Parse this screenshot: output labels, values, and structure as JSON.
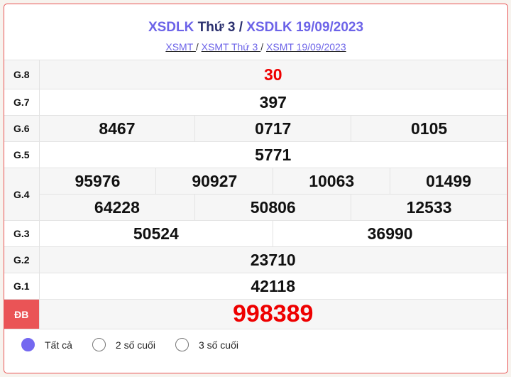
{
  "header": {
    "title_prefix": "XSDLK",
    "title_day": "Thứ 3",
    "title_sep": " / ",
    "title_date": "XSDLK 19/09/2023",
    "breadcrumbs": [
      "XSMT ",
      "XSMT Thứ 3 ",
      "XSMT 19/09/2023"
    ]
  },
  "prizes": {
    "g8": {
      "label": "G.8",
      "values": [
        "30"
      ]
    },
    "g7": {
      "label": "G.7",
      "values": [
        "397"
      ]
    },
    "g6": {
      "label": "G.6",
      "values": [
        "8467",
        "0717",
        "0105"
      ]
    },
    "g5": {
      "label": "G.5",
      "values": [
        "5771"
      ]
    },
    "g4": {
      "label": "G.4",
      "values": [
        "95976",
        "90927",
        "10063",
        "01499",
        "64228",
        "50806",
        "12533"
      ]
    },
    "g3": {
      "label": "G.3",
      "values": [
        "50524",
        "36990"
      ]
    },
    "g2": {
      "label": "G.2",
      "values": [
        "23710"
      ]
    },
    "g1": {
      "label": "G.1",
      "values": [
        "42118"
      ]
    },
    "db": {
      "label": "ĐB",
      "values": [
        "998389"
      ]
    }
  },
  "filters": [
    {
      "label": "Tất cả",
      "selected": true
    },
    {
      "label": "2 số cuối",
      "selected": false
    },
    {
      "label": "3 số cuối",
      "selected": false
    }
  ],
  "colors": {
    "accent": "#6c63e8",
    "special": "#ea5456",
    "red": "#e00000"
  }
}
